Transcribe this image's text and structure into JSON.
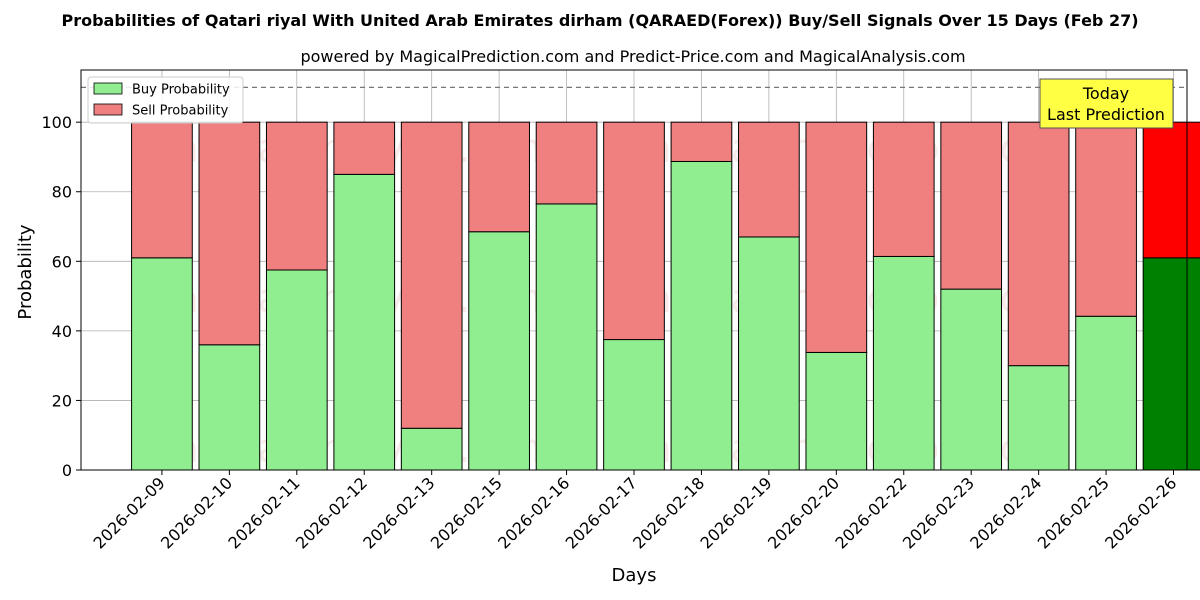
{
  "chart_data": {
    "type": "bar",
    "stacked": true,
    "title": "Probabilities of Qatari riyal With United Arab Emirates dirham (QARAED(Forex)) Buy/Sell Signals Over 15 Days (Feb 27)",
    "subtitle": "powered by MagicalPrediction.com and Predict-Price.com and MagicalAnalysis.com",
    "xlabel": "Days",
    "ylabel": "Probability",
    "ylim": [
      0,
      115
    ],
    "yticks": [
      0,
      20,
      40,
      60,
      80,
      100
    ],
    "grid": true,
    "legend_position": "top-left",
    "reference_line": 110,
    "categories": [
      "2026-02-09",
      "2026-02-10",
      "2026-02-11",
      "2026-02-12",
      "2026-02-13",
      "2026-02-15",
      "2026-02-16",
      "2026-02-17",
      "2026-02-18",
      "2026-02-19",
      "2026-02-20",
      "2026-02-22",
      "2026-02-23",
      "2026-02-24",
      "2026-02-25",
      "2026-02-26"
    ],
    "series": [
      {
        "name": "Buy Probability",
        "color": "#90ee90",
        "highlight_color": "#008000",
        "values": [
          61,
          36,
          57.5,
          85,
          12,
          68.5,
          76.5,
          37.5,
          88.7,
          67,
          33.8,
          61.4,
          52,
          30,
          44.2,
          61
        ]
      },
      {
        "name": "Sell Probability",
        "color": "#f08080",
        "highlight_color": "#ff0000",
        "values": [
          39,
          64,
          42.5,
          15,
          88,
          31.5,
          23.5,
          62.5,
          11.3,
          33,
          66.2,
          38.6,
          48,
          70,
          55.8,
          39
        ]
      }
    ],
    "highlight_index": 15,
    "annotation": {
      "lines": [
        "Today",
        "Last Prediction"
      ],
      "background": "#ffff44"
    },
    "watermarks": [
      "MagicalAnalysis.com",
      "MagicalPrediction.com"
    ]
  }
}
